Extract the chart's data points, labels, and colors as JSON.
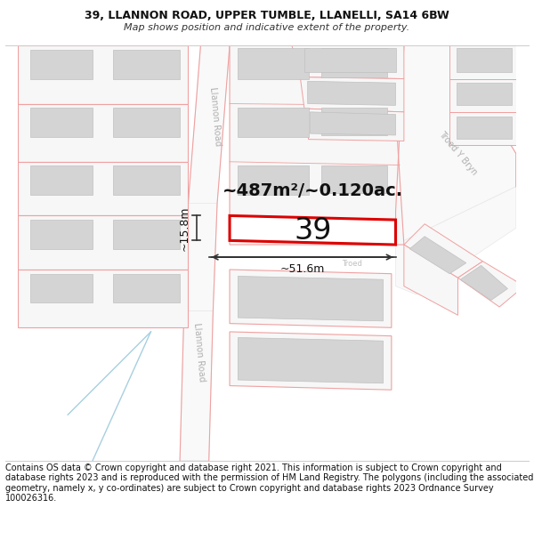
{
  "title": "39, LLANNON ROAD, UPPER TUMBLE, LLANELLI, SA14 6BW",
  "subtitle": "Map shows position and indicative extent of the property.",
  "footer": "Contains OS data © Crown copyright and database right 2021. This information is subject to Crown copyright and database rights 2023 and is reproduced with the permission of HM Land Registry. The polygons (including the associated geometry, namely x, y co-ordinates) are subject to Crown copyright and database rights 2023 Ordnance Survey 100026316.",
  "area_label": "~487m²/~0.120ac.",
  "number_label": "39",
  "dim_width": "~51.6m",
  "dim_height": "~15.8m",
  "road_label_upper": "Llannon Road",
  "road_label_lower": "Llannon Road",
  "road_label_troed": "Troed Y Bryn",
  "road_label_troed2": "Troed",
  "bg_color": "#ffffff",
  "highlight_color": "#dd0000",
  "dim_color": "#333333",
  "building_fill": "#d4d4d4",
  "building_edge": "#c0c0c0",
  "plot_fill": "#f7f7f7",
  "plot_edge": "#f0a0a0",
  "road_fill": "#f9f9f9",
  "road_edge": "#e8e8e8",
  "title_fontsize": 9,
  "subtitle_fontsize": 8,
  "footer_fontsize": 7,
  "area_fontsize": 14,
  "number_fontsize": 24,
  "dim_fontsize": 9,
  "road_fontsize": 7
}
